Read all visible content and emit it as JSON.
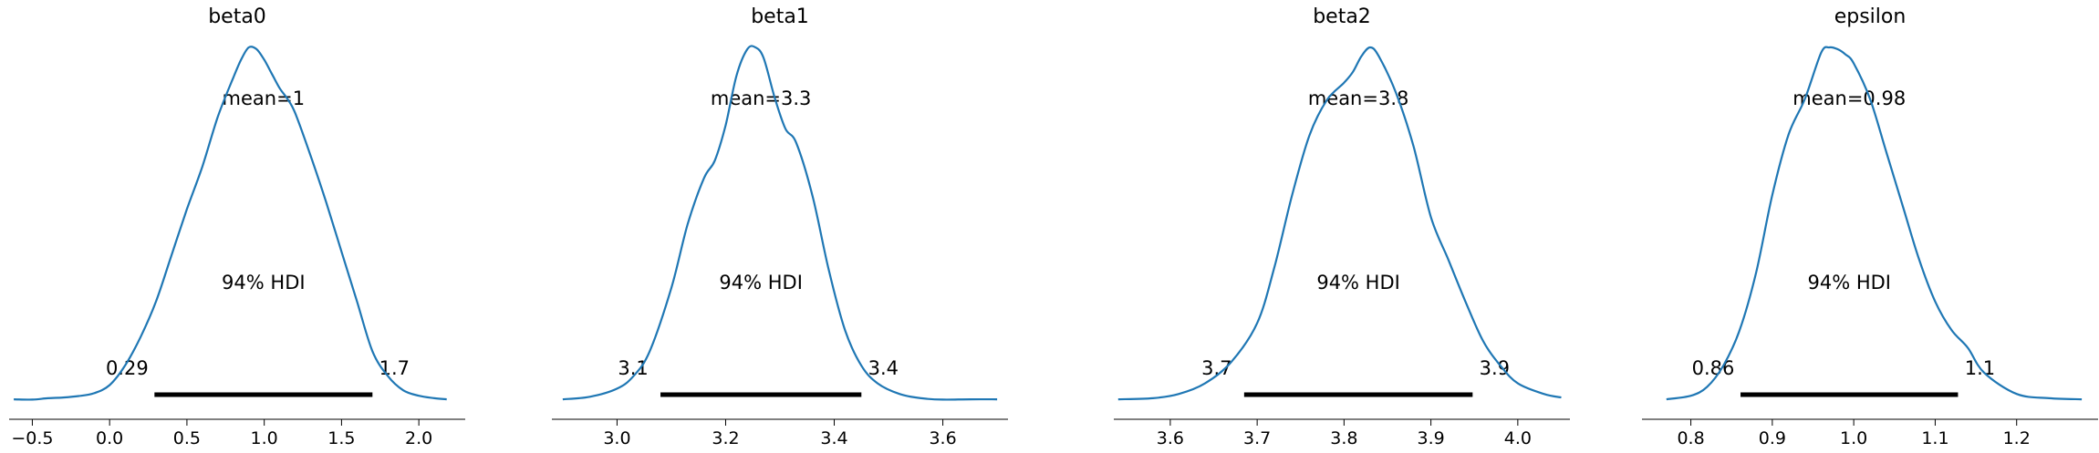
{
  "chart_data": [
    {
      "type": "area",
      "title": "beta0",
      "mean_label": "mean=1",
      "hdi_label": "94% HDI",
      "hdi": [
        0.29,
        1.7
      ],
      "hdi_lower_label": "0.29",
      "hdi_upper_label": "1.7",
      "xlim": [
        -0.65,
        2.3
      ],
      "xticks": [
        -0.5,
        0.0,
        0.5,
        1.0,
        1.5,
        2.0
      ],
      "xtick_labels": [
        "−0.5",
        "0.0",
        "0.5",
        "1.0",
        "1.5",
        "2.0"
      ],
      "series": [
        {
          "x": [
            -0.62,
            -0.5,
            -0.4,
            -0.3,
            -0.2,
            -0.1,
            0.0,
            0.1,
            0.2,
            0.3,
            0.4,
            0.5,
            0.6,
            0.7,
            0.8,
            0.85,
            0.9,
            0.95,
            1.0,
            1.05,
            1.1,
            1.15,
            1.2,
            1.3,
            1.4,
            1.5,
            1.6,
            1.7,
            1.8,
            1.9,
            2.0,
            2.1,
            2.18
          ],
          "y": [
            0.005,
            0.004,
            0.008,
            0.01,
            0.014,
            0.022,
            0.045,
            0.1,
            0.18,
            0.28,
            0.41,
            0.54,
            0.66,
            0.8,
            0.91,
            0.96,
            0.995,
            0.99,
            0.96,
            0.92,
            0.88,
            0.85,
            0.81,
            0.69,
            0.56,
            0.42,
            0.28,
            0.14,
            0.07,
            0.03,
            0.015,
            0.008,
            0.005
          ]
        }
      ]
    },
    {
      "type": "area",
      "title": "beta1",
      "mean_label": "mean=3.3",
      "hdi_label": "94% HDI",
      "hdi": [
        3.08,
        3.45
      ],
      "hdi_lower_label": "3.1",
      "hdi_upper_label": "3.4",
      "xlim": [
        2.88,
        3.72
      ],
      "xticks": [
        3.0,
        3.2,
        3.4,
        3.6
      ],
      "xtick_labels": [
        "3.0",
        "3.2",
        "3.4",
        "3.6"
      ],
      "series": [
        {
          "x": [
            2.9,
            2.95,
            3.0,
            3.03,
            3.06,
            3.1,
            3.13,
            3.16,
            3.18,
            3.2,
            3.22,
            3.24,
            3.255,
            3.27,
            3.29,
            3.31,
            3.33,
            3.36,
            3.39,
            3.42,
            3.45,
            3.48,
            3.52,
            3.56,
            3.6,
            3.65,
            3.7
          ],
          "y": [
            0.005,
            0.012,
            0.035,
            0.07,
            0.14,
            0.32,
            0.5,
            0.63,
            0.68,
            0.78,
            0.92,
            0.995,
            1.0,
            0.97,
            0.86,
            0.77,
            0.73,
            0.58,
            0.37,
            0.2,
            0.1,
            0.05,
            0.02,
            0.008,
            0.004,
            0.005,
            0.005
          ]
        }
      ]
    },
    {
      "type": "area",
      "title": "beta2",
      "mean_label": "mean=3.8",
      "hdi_label": "94% HDI",
      "hdi": [
        3.685,
        3.948
      ],
      "hdi_lower_label": "3.7",
      "hdi_upper_label": "3.9",
      "xlim": [
        3.535,
        4.06
      ],
      "xticks": [
        3.6,
        3.7,
        3.8,
        3.9,
        4.0
      ],
      "xtick_labels": [
        "3.6",
        "3.7",
        "3.8",
        "3.9",
        "4.0"
      ],
      "series": [
        {
          "x": [
            3.54,
            3.58,
            3.61,
            3.64,
            3.67,
            3.7,
            3.72,
            3.74,
            3.76,
            3.78,
            3.8,
            3.81,
            3.82,
            3.83,
            3.84,
            3.86,
            3.88,
            3.9,
            3.92,
            3.94,
            3.96,
            3.98,
            4.0,
            4.03,
            4.05
          ],
          "y": [
            0.005,
            0.008,
            0.02,
            0.05,
            0.11,
            0.22,
            0.38,
            0.58,
            0.75,
            0.85,
            0.9,
            0.93,
            0.975,
            1.0,
            0.975,
            0.87,
            0.72,
            0.52,
            0.4,
            0.28,
            0.17,
            0.1,
            0.05,
            0.02,
            0.01
          ]
        }
      ]
    },
    {
      "type": "area",
      "title": "epsilon",
      "mean_label": "mean=0.98",
      "hdi_label": "94% HDI",
      "hdi": [
        0.861,
        1.128
      ],
      "hdi_lower_label": "0.86",
      "hdi_upper_label": "1.1",
      "xlim": [
        0.74,
        1.3
      ],
      "xticks": [
        0.8,
        0.9,
        1.0,
        1.1,
        1.2
      ],
      "xtick_labels": [
        "0.8",
        "0.9",
        "1.0",
        "1.1",
        "1.2"
      ],
      "series": [
        {
          "x": [
            0.77,
            0.8,
            0.82,
            0.84,
            0.86,
            0.88,
            0.9,
            0.92,
            0.94,
            0.96,
            0.97,
            0.98,
            0.99,
            1.0,
            1.02,
            1.04,
            1.06,
            1.08,
            1.1,
            1.12,
            1.14,
            1.16,
            1.2,
            1.24,
            1.28
          ],
          "y": [
            0.005,
            0.015,
            0.04,
            0.1,
            0.2,
            0.36,
            0.58,
            0.75,
            0.85,
            0.98,
            0.995,
            0.99,
            0.975,
            0.95,
            0.85,
            0.7,
            0.55,
            0.4,
            0.28,
            0.2,
            0.15,
            0.08,
            0.02,
            0.008,
            0.005
          ]
        }
      ]
    }
  ]
}
